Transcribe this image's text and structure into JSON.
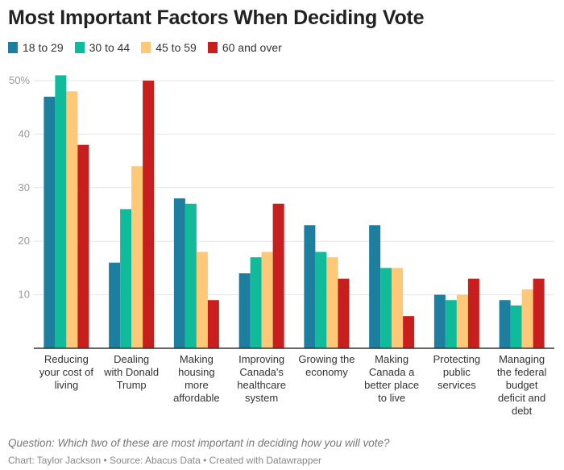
{
  "chart_data": {
    "type": "bar",
    "title": "Most Important Factors When Deciding Vote",
    "categories": [
      [
        "Reducing",
        "your cost of",
        "living"
      ],
      [
        "Dealing",
        "with Donald",
        "Trump"
      ],
      [
        "Making",
        "housing",
        "more",
        "affordable"
      ],
      [
        "Improving",
        "Canada's",
        "healthcare",
        "system"
      ],
      [
        "Growing the",
        "economy"
      ],
      [
        "Making",
        "Canada a",
        "better place",
        "to live"
      ],
      [
        "Protecting",
        "public",
        "services"
      ],
      [
        "Managing",
        "the federal",
        "budget",
        "deficit and",
        "debt"
      ]
    ],
    "series": [
      {
        "name": "18 to 29",
        "color": "#1d7ea0",
        "values": [
          47,
          16,
          28,
          14,
          23,
          23,
          10,
          9
        ]
      },
      {
        "name": "30 to 44",
        "color": "#10bb9c",
        "values": [
          51,
          26,
          27,
          17,
          18,
          15,
          9,
          8
        ]
      },
      {
        "name": "45 to 59",
        "color": "#fdc877",
        "values": [
          48,
          34,
          18,
          18,
          17,
          15,
          10,
          11
        ]
      },
      {
        "name": "60 and over",
        "color": "#c81e1e",
        "values": [
          38,
          50,
          9,
          27,
          13,
          6,
          13,
          13
        ]
      }
    ],
    "ylim": [
      0,
      50
    ],
    "yticks": [
      "10",
      "20",
      "30",
      "40",
      "50%"
    ],
    "ytick_values": [
      10,
      20,
      30,
      40,
      50
    ],
    "grid": true,
    "legend": "top-left"
  },
  "footer": {
    "question": "Question: Which two of these are most important in deciding how you will vote?",
    "credit": "Chart: Taylor Jackson • Source: Abacus Data • Created with Datawrapper"
  }
}
